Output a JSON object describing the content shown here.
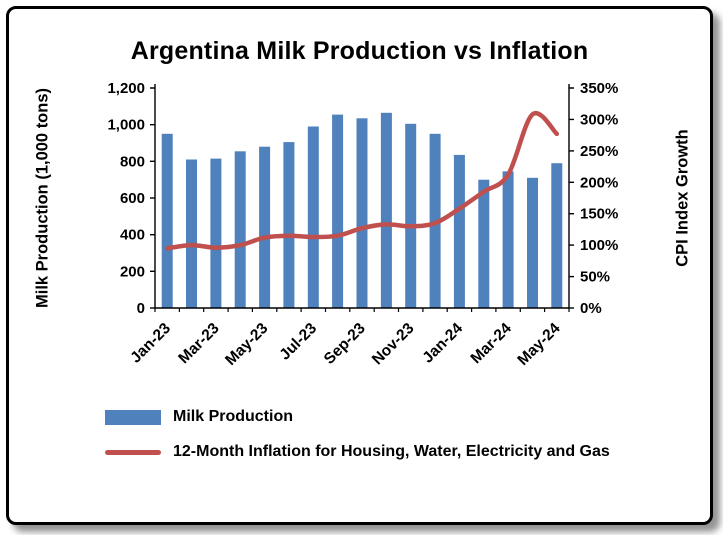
{
  "chart_data": {
    "type": "bar",
    "subtype": "combo-bar-line-dual-axis",
    "title": "Argentina Milk Production vs Inflation",
    "categories": [
      "Jan-23",
      "Feb-23",
      "Mar-23",
      "Apr-23",
      "May-23",
      "Jun-23",
      "Jul-23",
      "Aug-23",
      "Sep-23",
      "Oct-23",
      "Nov-23",
      "Dec-23",
      "Jan-24",
      "Feb-24",
      "Mar-24",
      "Apr-24",
      "May-24"
    ],
    "x_tick_labels_shown": [
      "Jan-23",
      "Mar-23",
      "May-23",
      "Jul-23",
      "Sep-23",
      "Nov-23",
      "Jan-24",
      "Mar-24",
      "May-24"
    ],
    "series": [
      {
        "name": "Milk Production",
        "type": "bar",
        "axis": "left",
        "unit": "1,000 tons",
        "color": "#4F81BD",
        "values": [
          950,
          810,
          815,
          855,
          880,
          905,
          990,
          1055,
          1035,
          1065,
          1005,
          950,
          835,
          700,
          745,
          710,
          790
        ]
      },
      {
        "name": "12-Month Inflation for Housing, Water, Electricity and Gas",
        "type": "line",
        "axis": "right",
        "unit": "%",
        "color": "#C0504D",
        "values": [
          95,
          100,
          96,
          100,
          112,
          115,
          113,
          115,
          127,
          133,
          130,
          135,
          158,
          185,
          212,
          308,
          277
        ]
      }
    ],
    "left_axis": {
      "label": "Milk Production (1,000 tons)",
      "min": 0,
      "max": 1200,
      "step": 200,
      "tick_labels": [
        "0",
        "200",
        "400",
        "600",
        "800",
        "1,000",
        "1,200"
      ]
    },
    "right_axis": {
      "label": "CPI Index Growth",
      "min": 0,
      "max": 350,
      "step": 50,
      "tick_labels": [
        "0%",
        "50%",
        "100%",
        "150%",
        "200%",
        "250%",
        "300%",
        "350%"
      ]
    },
    "grid": false,
    "legend_position": "bottom-left"
  }
}
